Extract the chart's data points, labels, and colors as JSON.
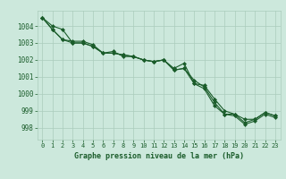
{
  "title": "Graphe pression niveau de la mer (hPa)",
  "bg_color": "#cce8dc",
  "grid_color": "#aaccbb",
  "line_color": "#1a5c2a",
  "marker_color": "#1a5c2a",
  "xlim": [
    -0.5,
    23.5
  ],
  "ylim": [
    997.3,
    1004.9
  ],
  "yticks": [
    998,
    999,
    1000,
    1001,
    1002,
    1003,
    1004
  ],
  "xticks": [
    0,
    1,
    2,
    3,
    4,
    5,
    6,
    7,
    8,
    9,
    10,
    11,
    12,
    13,
    14,
    15,
    16,
    17,
    18,
    19,
    20,
    21,
    22,
    23
  ],
  "series1_x": [
    0,
    1,
    2,
    3,
    4,
    5,
    6,
    7,
    8,
    9,
    10,
    11,
    12,
    13,
    14,
    15,
    16,
    17,
    18,
    19,
    20,
    21,
    22,
    23
  ],
  "series1_y": [
    1004.5,
    1003.8,
    1003.2,
    1003.0,
    1003.0,
    1002.8,
    1002.4,
    1002.4,
    1002.3,
    1002.2,
    1002.0,
    1001.9,
    1002.0,
    1001.4,
    1001.5,
    1000.6,
    1000.3,
    999.3,
    998.8,
    998.7,
    998.2,
    998.4,
    998.8,
    998.6
  ],
  "series2_x": [
    0,
    1,
    2,
    3,
    4,
    5,
    6,
    7,
    8,
    9,
    10,
    11,
    12,
    13,
    14,
    15,
    16,
    17,
    18,
    19,
    20,
    21,
    22,
    23
  ],
  "series2_y": [
    1004.5,
    1004.0,
    1003.8,
    1003.0,
    1003.0,
    1002.8,
    1002.4,
    1002.5,
    1002.2,
    1002.2,
    1002.0,
    1001.9,
    1002.0,
    1001.5,
    1001.8,
    1000.6,
    1000.5,
    999.7,
    999.0,
    998.8,
    998.5,
    998.5,
    998.9,
    998.7
  ],
  "series3_x": [
    0,
    1,
    2,
    3,
    4,
    5,
    6,
    7,
    8,
    9,
    10,
    11,
    12,
    13,
    14,
    15,
    16,
    17,
    18,
    19,
    20,
    21,
    22,
    23
  ],
  "series3_y": [
    1004.5,
    1003.8,
    1003.2,
    1003.1,
    1003.1,
    1002.9,
    1002.4,
    1002.4,
    1002.3,
    1002.2,
    1002.0,
    1001.9,
    1002.0,
    1001.4,
    1001.5,
    1000.8,
    1000.4,
    999.5,
    998.8,
    998.8,
    998.3,
    998.5,
    998.9,
    998.7
  ]
}
